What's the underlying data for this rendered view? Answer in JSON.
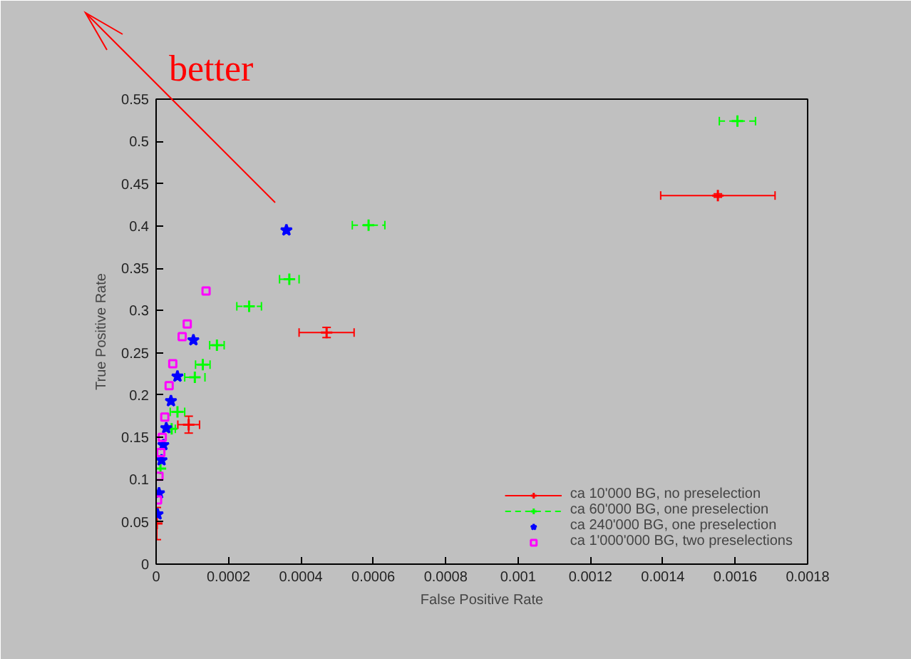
{
  "chart_data": {
    "type": "scatter",
    "xlabel": "False Positive Rate",
    "ylabel": "True Positive Rate",
    "annotations": [
      "better"
    ],
    "xlim": [
      0,
      0.0018
    ],
    "ylim": [
      0,
      0.55
    ],
    "xticks": [
      0,
      0.0002,
      0.0004,
      0.0006,
      0.0008,
      0.001,
      0.0012,
      0.0014,
      0.0016,
      0.0018
    ],
    "yticks": [
      0,
      0.05,
      0.1,
      0.15,
      0.2,
      0.25,
      0.3,
      0.35,
      0.4,
      0.45,
      0.5,
      0.55
    ],
    "grid": false,
    "legend": "bottom right",
    "series": [
      {
        "name": "ca 10'000 BG, no preselection",
        "color": "#ff0000",
        "marker": "cross",
        "line_style": "solid",
        "x": [
          0.001552,
          0.000471,
          9e-05,
          2e-06
        ],
        "values": [
          0.436,
          0.274,
          0.165,
          0.048
        ],
        "xerrors": [
          0.000158,
          7.6e-05,
          3e-05,
          null
        ],
        "errors": [
          0.002,
          0.006,
          0.01,
          0.019
        ]
      },
      {
        "name": "ca 60'000 BG, one preselection",
        "color": "#00ff00",
        "marker": "cross",
        "line_style": "dashed",
        "x": [
          0.001606,
          0.000587,
          0.000368,
          0.000257,
          0.000168,
          0.000129,
          0.000107,
          5.9e-05,
          4.3e-05,
          1.2e-05
        ],
        "values": [
          0.524,
          0.401,
          0.337,
          0.305,
          0.259,
          0.236,
          0.221,
          0.18,
          0.16,
          0.113
        ],
        "xerrors": [
          5e-05,
          4.5e-05,
          2.7e-05,
          3.4e-05,
          2e-05,
          2e-05,
          2.8e-05,
          2e-05,
          1e-05,
          null
        ]
      },
      {
        "name": "ca 240'000 BG, one preselection",
        "color": "#0000ff",
        "marker": "star",
        "line_style": "dotted",
        "x": [
          0.00036,
          0.000103,
          5.9e-05,
          4.1e-05,
          2.8e-05,
          2e-05,
          1.5e-05,
          8e-06,
          4e-06
        ],
        "values": [
          0.395,
          0.265,
          0.222,
          0.193,
          0.161,
          0.141,
          0.123,
          0.084,
          0.059
        ]
      },
      {
        "name": "ca 1'000'000 BG, two preselections",
        "color": "#ff00ff",
        "marker": "square",
        "line_style": "dotted",
        "x": [
          0.000138,
          8.6e-05,
          7.2e-05,
          4.6e-05,
          3.6e-05,
          2.4e-05,
          1.7e-05,
          1.3e-05,
          8e-06,
          4e-06
        ],
        "values": [
          0.323,
          0.284,
          0.269,
          0.237,
          0.211,
          0.174,
          0.15,
          0.132,
          0.104,
          0.076
        ]
      }
    ]
  }
}
